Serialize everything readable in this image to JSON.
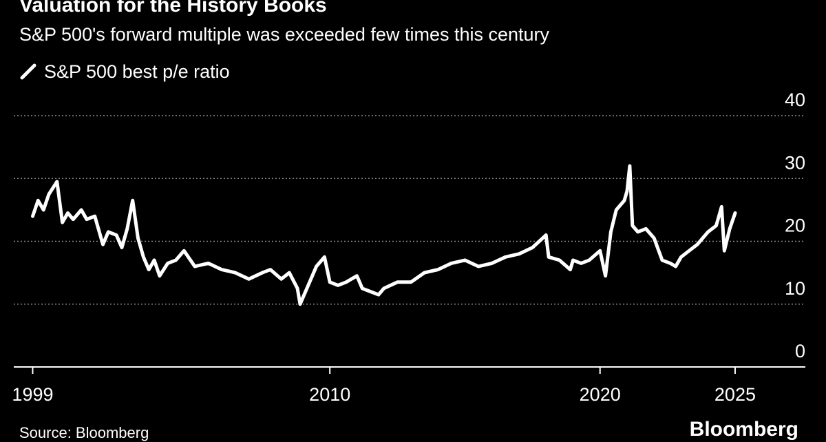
{
  "title": "Valuation for the History Books",
  "subtitle": "S&P 500's forward multiple was exceeded few times this century",
  "source_text": "Source: Bloomberg",
  "brand": "Bloomberg",
  "colors": {
    "background": "#000000",
    "series": "#ffffff",
    "gridline": "#8a8a8a",
    "text": "#ffffff"
  },
  "chart_data": {
    "type": "line",
    "title": "Valuation for the History Books",
    "subtitle": "S&P 500's forward multiple was exceeded few times this century",
    "xlabel": "",
    "ylabel": "",
    "xlim": [
      1998.3,
      2027.6
    ],
    "ylim": [
      0,
      40
    ],
    "y_ticks": [
      0,
      10,
      20,
      30,
      40
    ],
    "y_tick_labels": [
      "0",
      "10",
      "20",
      "30",
      "40"
    ],
    "x_ticks": [
      1999,
      2010,
      2020,
      2025
    ],
    "x_tick_labels": [
      "1999",
      "2010",
      "2020",
      "2025"
    ],
    "grid": "horizontal-dotted",
    "y_axis_side": "right",
    "legend_position": "top-left",
    "series": [
      {
        "name": "S&P 500 best p/e ratio",
        "x": [
          1999.0,
          1999.2,
          1999.4,
          1999.6,
          1999.9,
          2000.1,
          2000.3,
          2000.5,
          2000.8,
          2001.0,
          2001.3,
          2001.6,
          2001.8,
          2002.1,
          2002.3,
          2002.5,
          2002.7,
          2002.9,
          2003.1,
          2003.3,
          2003.5,
          2003.7,
          2004.0,
          2004.3,
          2004.6,
          2005.0,
          2005.5,
          2006.0,
          2006.5,
          2007.0,
          2007.5,
          2007.8,
          2008.2,
          2008.5,
          2008.8,
          2008.9,
          2009.2,
          2009.5,
          2009.8,
          2010.0,
          2010.3,
          2010.6,
          2011.0,
          2011.2,
          2011.5,
          2011.8,
          2012.0,
          2012.5,
          2013.0,
          2013.5,
          2014.0,
          2014.5,
          2015.0,
          2015.5,
          2016.0,
          2016.5,
          2017.0,
          2017.5,
          2018.0,
          2018.1,
          2018.5,
          2018.9,
          2019.0,
          2019.3,
          2019.6,
          2020.0,
          2020.2,
          2020.4,
          2020.6,
          2020.9,
          2021.0,
          2021.1,
          2021.2,
          2021.4,
          2021.7,
          2022.0,
          2022.3,
          2022.6,
          2022.8,
          2023.0,
          2023.3,
          2023.6,
          2023.8,
          2024.0,
          2024.3,
          2024.5,
          2024.6,
          2024.8,
          2025.0
        ],
        "y": [
          24.0,
          26.5,
          25.0,
          27.5,
          29.5,
          23.0,
          24.5,
          23.5,
          25.0,
          23.5,
          24.0,
          19.5,
          21.5,
          21.0,
          19.0,
          22.0,
          26.5,
          20.5,
          17.5,
          15.5,
          17.0,
          14.5,
          16.5,
          17.0,
          18.5,
          16.0,
          16.5,
          15.5,
          15.0,
          14.0,
          15.0,
          15.5,
          14.0,
          15.0,
          12.5,
          10.0,
          13.0,
          16.0,
          17.5,
          13.5,
          13.0,
          13.5,
          14.5,
          12.5,
          12.0,
          11.5,
          12.5,
          13.5,
          13.5,
          15.0,
          15.5,
          16.5,
          17.0,
          16.0,
          16.5,
          17.5,
          18.0,
          19.0,
          21.0,
          17.5,
          17.0,
          15.5,
          17.0,
          16.5,
          17.0,
          18.5,
          14.5,
          21.5,
          25.0,
          26.5,
          28.0,
          32.0,
          22.5,
          21.5,
          22.0,
          20.5,
          17.0,
          16.5,
          16.0,
          17.5,
          18.5,
          19.5,
          20.5,
          21.5,
          22.5,
          25.5,
          18.5,
          22.0,
          24.5
        ]
      }
    ]
  }
}
